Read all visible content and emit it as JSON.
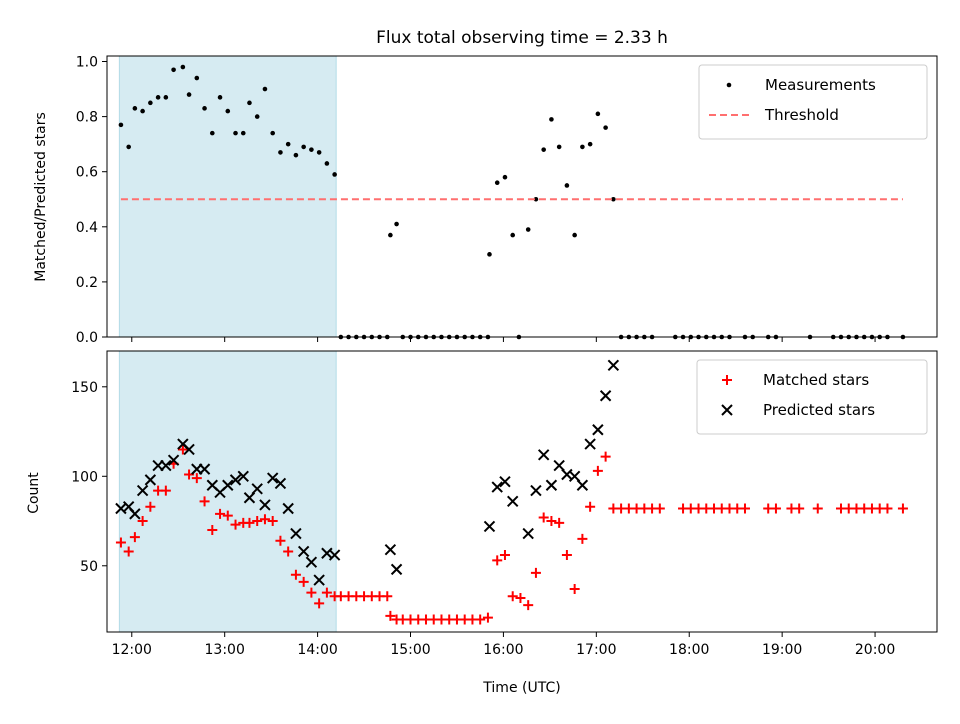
{
  "chart_data": [
    {
      "type": "scatter",
      "title": "Flux total observing time = 2.33 h",
      "ylabel": "Matched/Predicted stars",
      "xlabel": "",
      "xlim": [
        "11:44",
        "20:40"
      ],
      "ylim": [
        0,
        1.02
      ],
      "yticks": [
        "0.0",
        "0.2",
        "0.4",
        "0.6",
        "0.8",
        "1.0"
      ],
      "shaded_interval": [
        "11:52",
        "14:12"
      ],
      "legend_position": "top-right",
      "series": [
        {
          "name": "Measurements",
          "marker": "dot",
          "color": "#000000",
          "points": [
            [
              "11:53",
              0.77
            ],
            [
              "11:58",
              0.69
            ],
            [
              "12:02",
              0.83
            ],
            [
              "12:07",
              0.82
            ],
            [
              "12:12",
              0.85
            ],
            [
              "12:17",
              0.87
            ],
            [
              "12:22",
              0.87
            ],
            [
              "12:27",
              0.97
            ],
            [
              "12:33",
              0.98
            ],
            [
              "12:37",
              0.88
            ],
            [
              "12:42",
              0.94
            ],
            [
              "12:47",
              0.83
            ],
            [
              "12:52",
              0.74
            ],
            [
              "12:57",
              0.87
            ],
            [
              "13:02",
              0.82
            ],
            [
              "13:07",
              0.74
            ],
            [
              "13:12",
              0.74
            ],
            [
              "13:16",
              0.85
            ],
            [
              "13:21",
              0.8
            ],
            [
              "13:26",
              0.9
            ],
            [
              "13:31",
              0.74
            ],
            [
              "13:36",
              0.67
            ],
            [
              "13:41",
              0.7
            ],
            [
              "13:46",
              0.66
            ],
            [
              "13:51",
              0.69
            ],
            [
              "13:56",
              0.68
            ],
            [
              "14:01",
              0.67
            ],
            [
              "14:06",
              0.63
            ],
            [
              "14:11",
              0.59
            ],
            [
              "14:15",
              0.0
            ],
            [
              "14:20",
              0.0
            ],
            [
              "14:25",
              0.0
            ],
            [
              "14:30",
              0.0
            ],
            [
              "14:35",
              0.0
            ],
            [
              "14:40",
              0.0
            ],
            [
              "14:45",
              0.0
            ],
            [
              "14:47",
              0.37
            ],
            [
              "14:51",
              0.41
            ],
            [
              "14:55",
              0.0
            ],
            [
              "15:00",
              0.0
            ],
            [
              "15:05",
              0.0
            ],
            [
              "15:10",
              0.0
            ],
            [
              "15:15",
              0.0
            ],
            [
              "15:20",
              0.0
            ],
            [
              "15:25",
              0.0
            ],
            [
              "15:30",
              0.0
            ],
            [
              "15:35",
              0.0
            ],
            [
              "15:40",
              0.0
            ],
            [
              "15:45",
              0.0
            ],
            [
              "15:50",
              0.0
            ],
            [
              "15:51",
              0.3
            ],
            [
              "15:56",
              0.56
            ],
            [
              "16:01",
              0.58
            ],
            [
              "16:06",
              0.37
            ],
            [
              "16:10",
              0.0
            ],
            [
              "16:16",
              0.39
            ],
            [
              "16:21",
              0.5
            ],
            [
              "16:26",
              0.68
            ],
            [
              "16:31",
              0.79
            ],
            [
              "16:36",
              0.69
            ],
            [
              "16:41",
              0.55
            ],
            [
              "16:46",
              0.37
            ],
            [
              "16:51",
              0.69
            ],
            [
              "16:56",
              0.7
            ],
            [
              "17:01",
              0.81
            ],
            [
              "17:06",
              0.76
            ],
            [
              "17:11",
              0.5
            ],
            [
              "17:16",
              0.0
            ],
            [
              "17:21",
              0.0
            ],
            [
              "17:26",
              0.0
            ],
            [
              "17:31",
              0.0
            ],
            [
              "17:36",
              0.0
            ],
            [
              "17:51",
              0.0
            ],
            [
              "17:56",
              0.0
            ],
            [
              "18:01",
              0.0
            ],
            [
              "18:06",
              0.0
            ],
            [
              "18:11",
              0.0
            ],
            [
              "18:16",
              0.0
            ],
            [
              "18:21",
              0.0
            ],
            [
              "18:26",
              0.0
            ],
            [
              "18:36",
              0.0
            ],
            [
              "18:41",
              0.0
            ],
            [
              "18:51",
              0.0
            ],
            [
              "18:56",
              0.0
            ],
            [
              "19:18",
              0.0
            ],
            [
              "19:33",
              0.0
            ],
            [
              "19:38",
              0.0
            ],
            [
              "19:43",
              0.0
            ],
            [
              "19:48",
              0.0
            ],
            [
              "19:53",
              0.0
            ],
            [
              "19:58",
              0.0
            ],
            [
              "20:03",
              0.0
            ],
            [
              "20:08",
              0.0
            ],
            [
              "20:18",
              0.0
            ]
          ]
        },
        {
          "name": "Threshold",
          "marker": "dashed-line",
          "color": "#ff6f6f",
          "points": [
            [
              "11:53",
              0.5
            ],
            [
              "20:18",
              0.5
            ]
          ]
        }
      ]
    },
    {
      "type": "scatter",
      "title": "",
      "ylabel": "Count",
      "xlabel": "Time (UTC)",
      "xlim": [
        "11:44",
        "20:40"
      ],
      "ylim": [
        13,
        170
      ],
      "yticks": [
        "50",
        "100",
        "150"
      ],
      "xticks": [
        "12:00",
        "13:00",
        "14:00",
        "15:00",
        "16:00",
        "17:00",
        "18:00",
        "19:00",
        "20:00"
      ],
      "shaded_interval": [
        "11:52",
        "14:12"
      ],
      "legend_position": "top-right",
      "series": [
        {
          "name": "Matched stars",
          "marker": "plus",
          "color": "#ff0000",
          "points": [
            [
              "11:53",
              63
            ],
            [
              "11:58",
              58
            ],
            [
              "12:02",
              66
            ],
            [
              "12:07",
              75
            ],
            [
              "12:12",
              83
            ],
            [
              "12:17",
              92
            ],
            [
              "12:22",
              92
            ],
            [
              "12:27",
              107
            ],
            [
              "12:33",
              115
            ],
            [
              "12:37",
              101
            ],
            [
              "12:42",
              99
            ],
            [
              "12:47",
              86
            ],
            [
              "12:52",
              70
            ],
            [
              "12:57",
              79
            ],
            [
              "13:02",
              78
            ],
            [
              "13:07",
              73
            ],
            [
              "13:12",
              74
            ],
            [
              "13:16",
              74
            ],
            [
              "13:21",
              75
            ],
            [
              "13:26",
              76
            ],
            [
              "13:31",
              75
            ],
            [
              "13:36",
              64
            ],
            [
              "13:41",
              58
            ],
            [
              "13:46",
              45
            ],
            [
              "13:51",
              41
            ],
            [
              "13:56",
              35
            ],
            [
              "14:01",
              29
            ],
            [
              "14:06",
              35
            ],
            [
              "14:11",
              33
            ],
            [
              "14:15",
              33
            ],
            [
              "14:20",
              33
            ],
            [
              "14:25",
              33
            ],
            [
              "14:30",
              33
            ],
            [
              "14:35",
              33
            ],
            [
              "14:40",
              33
            ],
            [
              "14:45",
              33
            ],
            [
              "14:47",
              22
            ],
            [
              "14:51",
              20
            ],
            [
              "14:55",
              20
            ],
            [
              "15:00",
              20
            ],
            [
              "15:05",
              20
            ],
            [
              "15:10",
              20
            ],
            [
              "15:15",
              20
            ],
            [
              "15:20",
              20
            ],
            [
              "15:25",
              20
            ],
            [
              "15:30",
              20
            ],
            [
              "15:35",
              20
            ],
            [
              "15:40",
              20
            ],
            [
              "15:45",
              20
            ],
            [
              "15:50",
              21
            ],
            [
              "15:56",
              53
            ],
            [
              "16:01",
              56
            ],
            [
              "16:06",
              33
            ],
            [
              "16:11",
              32
            ],
            [
              "16:16",
              28
            ],
            [
              "16:21",
              46
            ],
            [
              "16:26",
              77
            ],
            [
              "16:31",
              75
            ],
            [
              "16:36",
              74
            ],
            [
              "16:41",
              56
            ],
            [
              "16:46",
              37
            ],
            [
              "16:51",
              65
            ],
            [
              "16:56",
              83
            ],
            [
              "17:01",
              103
            ],
            [
              "17:06",
              111
            ],
            [
              "17:11",
              82
            ],
            [
              "17:16",
              82
            ],
            [
              "17:21",
              82
            ],
            [
              "17:26",
              82
            ],
            [
              "17:31",
              82
            ],
            [
              "17:36",
              82
            ],
            [
              "17:41",
              82
            ],
            [
              "17:56",
              82
            ],
            [
              "18:01",
              82
            ],
            [
              "18:06",
              82
            ],
            [
              "18:11",
              82
            ],
            [
              "18:16",
              82
            ],
            [
              "18:21",
              82
            ],
            [
              "18:26",
              82
            ],
            [
              "18:31",
              82
            ],
            [
              "18:36",
              82
            ],
            [
              "18:51",
              82
            ],
            [
              "18:56",
              82
            ],
            [
              "19:06",
              82
            ],
            [
              "19:11",
              82
            ],
            [
              "19:23",
              82
            ],
            [
              "19:38",
              82
            ],
            [
              "19:43",
              82
            ],
            [
              "19:48",
              82
            ],
            [
              "19:53",
              82
            ],
            [
              "19:58",
              82
            ],
            [
              "20:03",
              82
            ],
            [
              "20:08",
              82
            ],
            [
              "20:18",
              82
            ]
          ]
        },
        {
          "name": "Predicted stars",
          "marker": "x",
          "color": "#000000",
          "points": [
            [
              "11:53",
              82
            ],
            [
              "11:58",
              83
            ],
            [
              "12:02",
              79
            ],
            [
              "12:07",
              92
            ],
            [
              "12:12",
              98
            ],
            [
              "12:17",
              106
            ],
            [
              "12:22",
              106
            ],
            [
              "12:27",
              109
            ],
            [
              "12:33",
              118
            ],
            [
              "12:37",
              115
            ],
            [
              "12:42",
              104
            ],
            [
              "12:47",
              104
            ],
            [
              "12:52",
              95
            ],
            [
              "12:57",
              91
            ],
            [
              "13:02",
              95
            ],
            [
              "13:07",
              98
            ],
            [
              "13:12",
              100
            ],
            [
              "13:16",
              88
            ],
            [
              "13:21",
              93
            ],
            [
              "13:26",
              84
            ],
            [
              "13:31",
              99
            ],
            [
              "13:36",
              96
            ],
            [
              "13:41",
              82
            ],
            [
              "13:46",
              68
            ],
            [
              "13:51",
              58
            ],
            [
              "13:56",
              52
            ],
            [
              "14:01",
              42
            ],
            [
              "14:06",
              57
            ],
            [
              "14:11",
              56
            ],
            [
              "14:47",
              59
            ],
            [
              "14:51",
              48
            ],
            [
              "15:51",
              72
            ],
            [
              "15:56",
              94
            ],
            [
              "16:01",
              97
            ],
            [
              "16:06",
              86
            ],
            [
              "16:16",
              68
            ],
            [
              "16:21",
              92
            ],
            [
              "16:26",
              112
            ],
            [
              "16:31",
              95
            ],
            [
              "16:36",
              106
            ],
            [
              "16:41",
              101
            ],
            [
              "16:46",
              100
            ],
            [
              "16:51",
              95
            ],
            [
              "16:56",
              118
            ],
            [
              "17:01",
              126
            ],
            [
              "17:06",
              145
            ],
            [
              "17:11",
              162
            ]
          ]
        }
      ]
    }
  ]
}
